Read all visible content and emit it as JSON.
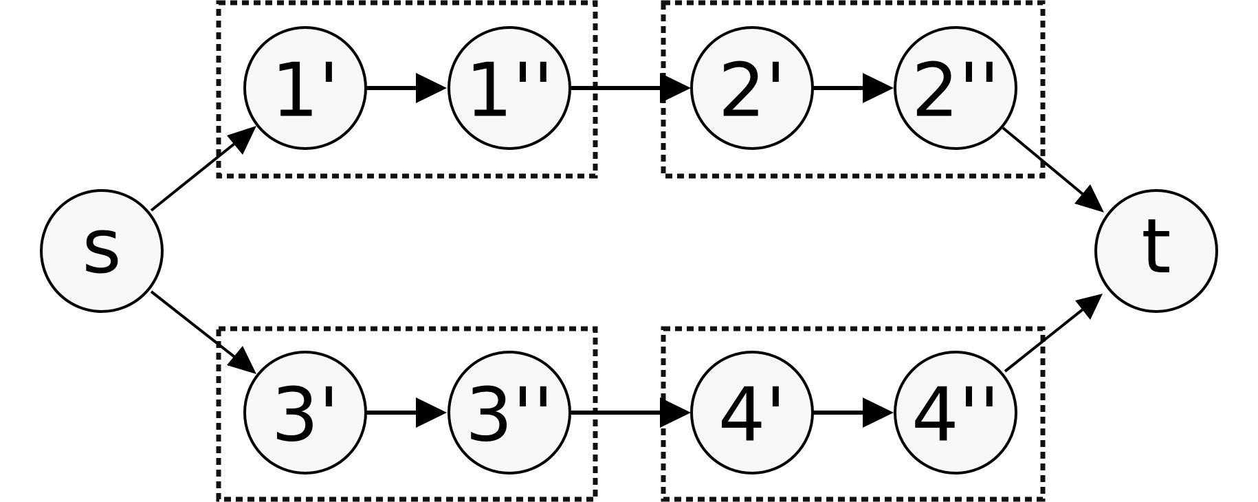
{
  "nodes": {
    "s": "s",
    "t": "t",
    "n1a": "1'",
    "n1b": "1''",
    "n2a": "2'",
    "n2b": "2''",
    "n3a": "3'",
    "n3b": "3''",
    "n4a": "4'",
    "n4b": "4''"
  },
  "colors": {
    "node_fill": "#f8f8f8",
    "stroke": "#000000",
    "background": "#ffffff"
  }
}
